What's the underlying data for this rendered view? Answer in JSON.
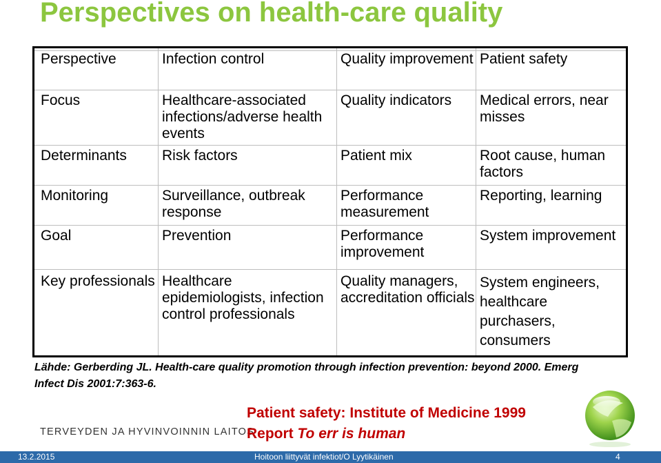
{
  "title": "Perspectives on health-care quality",
  "table": {
    "rows": [
      [
        "Perspective",
        "Infection control",
        "Quality improvement",
        "Patient safety"
      ],
      [
        "Focus",
        "Healthcare-associated infections/adverse health events",
        "Quality indicators",
        "Medical errors, near misses"
      ],
      [
        "Determinants",
        "Risk factors",
        "Patient mix",
        "Root cause, human factors"
      ],
      [
        "Monitoring",
        "Surveillance, outbreak response",
        "Performance measurement",
        "Reporting, learning"
      ],
      [
        "Goal",
        "Prevention",
        "Performance improvement",
        "System improvement"
      ],
      [
        "Key professionals",
        "Healthcare epidemiologists, infection control professionals",
        "Quality managers, accreditation officials",
        "System engineers, healthcare purchasers, consumers"
      ]
    ]
  },
  "source": "Lähde: Gerberding JL. Health-care quality promotion through infection prevention: beyond 2000. Emerg Infect Dis 2001:7:363-6.",
  "organization": "TERVEYDEN JA HYVINVOINNIN LAITOS",
  "note": {
    "line1": "Patient safety: Institute of Medicine 1999",
    "line2_prefix": "Report ",
    "line2_italic": "To err is human"
  },
  "footer": {
    "date": "13.2.2015",
    "center": "Hoitoon liittyvät infektiot/O Lyytikäinen",
    "page": "4"
  },
  "colors": {
    "title": "#8cc63f",
    "note": "#c00000",
    "footer_bg": "#2d6aa9"
  }
}
